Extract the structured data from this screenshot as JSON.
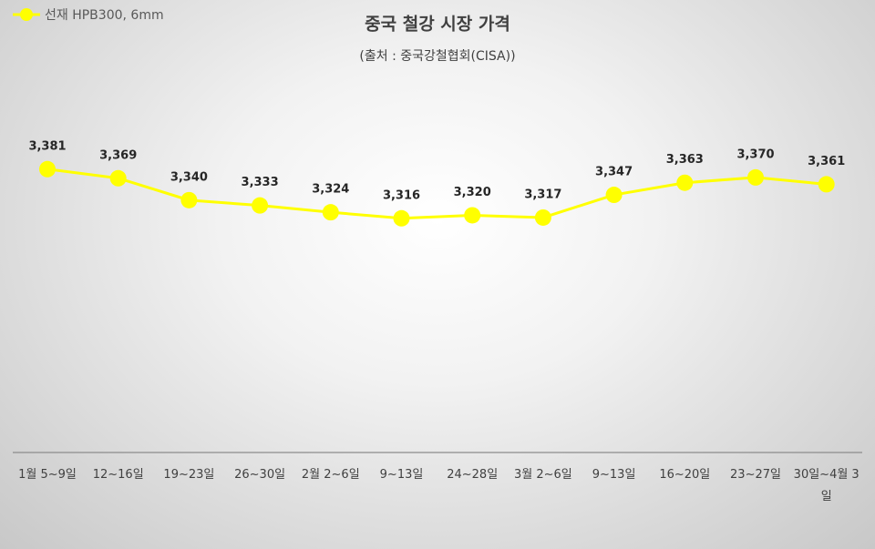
{
  "chart_data": {
    "type": "line",
    "title": "중국 철강 시장 가격",
    "subtitle": "(출처 : 중국강철협회(CISA))",
    "categories": [
      "1월 5~9일",
      "12~16일",
      "19~23일",
      "26~30일",
      "2월 2~6일",
      "9~13일",
      "24~28일",
      "3월 2~6일",
      "9~13일",
      "16~20일",
      "23~27일",
      "30일~4월 3일"
    ],
    "series": [
      {
        "name": "선재 HPB300, 6mm",
        "color": "#ffff00",
        "values": [
          3381,
          3369,
          3340,
          3333,
          3324,
          3316,
          3320,
          3317,
          3347,
          3363,
          3370,
          3361
        ],
        "value_labels": [
          "3,381",
          "3,369",
          "3,340",
          "3,333",
          "3,324",
          "3,316",
          "3,320",
          "3,317",
          "3,347",
          "3,363",
          "3,370",
          "3,361"
        ]
      }
    ],
    "ylim": [
      3000,
      3400
    ],
    "legend": "top-left"
  }
}
